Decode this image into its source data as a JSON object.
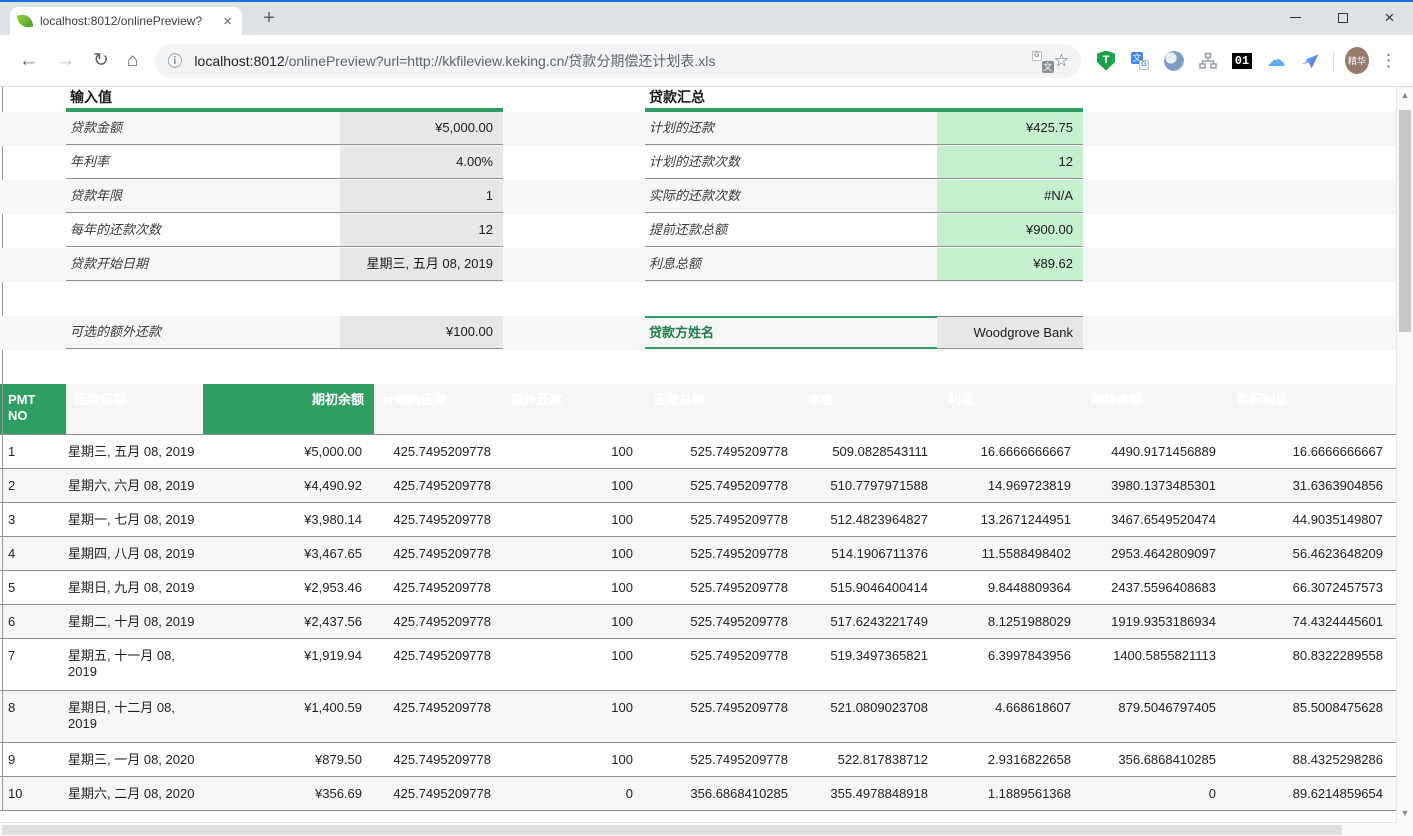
{
  "colors": {
    "green": "#2f9e63",
    "green-dark": "#1e7e49",
    "light-green": "#c6efce",
    "gray-cell": "#e7e7e7",
    "stripe": "#f6f6f6",
    "row-border": "#8f8f8f"
  },
  "browser": {
    "tab_title": "localhost:8012/onlinePreview?",
    "url_host": "localhost:8012",
    "url_rest": "/onlinePreview?url=http://kkfileview.keking.cn/贷款分期偿还计划表.xls",
    "badge": "01",
    "profile_label": "精华"
  },
  "icons": {
    "back": "←",
    "forward": "→",
    "reload": "↻",
    "home": "⌂",
    "info": "ⓘ",
    "star": "☆",
    "close": "×",
    "plus": "+",
    "menu_dots": "⋮",
    "scroll_up": "▲",
    "scroll_down": "▼",
    "cloud": "☁",
    "translate_char": "文",
    "translate_g": "G",
    "shield_t": "T"
  },
  "input_section": {
    "title": "输入值",
    "rows": [
      {
        "label": "贷款金额",
        "value": "¥5,000.00"
      },
      {
        "label": "年利率",
        "value": "4.00%"
      },
      {
        "label": "贷款年限",
        "value": "1"
      },
      {
        "label": "每年的还款次数",
        "value": "12"
      },
      {
        "label": "贷款开始日期",
        "value": "星期三, 五月 08, 2019"
      }
    ],
    "extra": {
      "label": "可选的额外还款",
      "value": "¥100.00"
    }
  },
  "summary_section": {
    "title": "贷款汇总",
    "rows": [
      {
        "label": "计划的还款",
        "value": "¥425.75"
      },
      {
        "label": "计划的还款次数",
        "value": "12"
      },
      {
        "label": "实际的还款次数",
        "value": "#N/A"
      },
      {
        "label": "提前还款总额",
        "value": "¥900.00"
      },
      {
        "label": "利息总额",
        "value": "¥89.62"
      }
    ],
    "lender": {
      "label": "贷款方姓名",
      "value": "Woodgrove Bank"
    }
  },
  "schedule_table": {
    "headers": [
      "PMT NO",
      "还款日期",
      "期初余额",
      "计划的还款",
      "额外还款",
      "还款总额",
      "本金",
      "利息",
      "期终余额",
      "累积利息"
    ],
    "tall_rows": [
      7,
      8
    ],
    "rows": [
      [
        "1",
        "星期三, 五月 08, 2019",
        "¥5,000.00",
        "425.7495209778",
        "100",
        "525.7495209778",
        "509.0828543111",
        "16.6666666667",
        "4490.9171456889",
        "16.6666666667"
      ],
      [
        "2",
        "星期六, 六月 08, 2019",
        "¥4,490.92",
        "425.7495209778",
        "100",
        "525.7495209778",
        "510.7797971588",
        "14.969723819",
        "3980.1373485301",
        "31.6363904856"
      ],
      [
        "3",
        "星期一, 七月 08, 2019",
        "¥3,980.14",
        "425.7495209778",
        "100",
        "525.7495209778",
        "512.4823964827",
        "13.2671244951",
        "3467.6549520474",
        "44.9035149807"
      ],
      [
        "4",
        "星期四, 八月 08, 2019",
        "¥3,467.65",
        "425.7495209778",
        "100",
        "525.7495209778",
        "514.1906711376",
        "11.5588498402",
        "2953.4642809097",
        "56.4623648209"
      ],
      [
        "5",
        "星期日, 九月 08, 2019",
        "¥2,953.46",
        "425.7495209778",
        "100",
        "525.7495209778",
        "515.9046400414",
        "9.8448809364",
        "2437.5596408683",
        "66.3072457573"
      ],
      [
        "6",
        "星期二, 十月 08, 2019",
        "¥2,437.56",
        "425.7495209778",
        "100",
        "525.7495209778",
        "517.6243221749",
        "8.1251988029",
        "1919.9353186934",
        "74.4324445601"
      ],
      [
        "7",
        "星期五, 十一月 08, 2019",
        "¥1,919.94",
        "425.7495209778",
        "100",
        "525.7495209778",
        "519.3497365821",
        "6.3997843956",
        "1400.5855821113",
        "80.8322289558"
      ],
      [
        "8",
        "星期日, 十二月 08, 2019",
        "¥1,400.59",
        "425.7495209778",
        "100",
        "525.7495209778",
        "521.0809023708",
        "4.668618607",
        "879.5046797405",
        "85.5008475628"
      ],
      [
        "9",
        "星期三, 一月 08, 2020",
        "¥879.50",
        "425.7495209778",
        "100",
        "525.7495209778",
        "522.817838712",
        "2.9316822658",
        "356.6868410285",
        "88.4325298286"
      ],
      [
        "10",
        "星期六, 二月 08, 2020",
        "¥356.69",
        "425.7495209778",
        "0",
        "356.6868410285",
        "355.4978848918",
        "1.1889561368",
        "0",
        "89.6214859654"
      ]
    ]
  }
}
